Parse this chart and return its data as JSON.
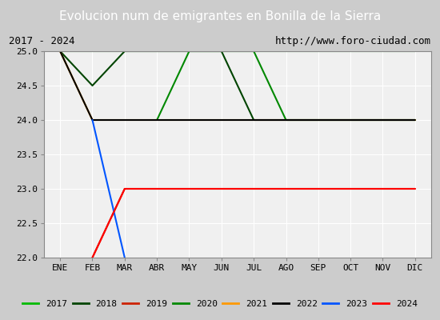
{
  "title": "Evolucion num de emigrantes en Bonilla de la Sierra",
  "subtitle_left": "2017 - 2024",
  "subtitle_right": "http://www.foro-ciudad.com",
  "xlabel_months": [
    "ENE",
    "FEB",
    "MAR",
    "ABR",
    "MAY",
    "JUN",
    "JUL",
    "AGO",
    "SEP",
    "OCT",
    "NOV",
    "DIC"
  ],
  "ylim": [
    22.0,
    25.0
  ],
  "yticks": [
    22.0,
    22.5,
    23.0,
    23.5,
    24.0,
    24.5,
    25.0
  ],
  "series": [
    {
      "label": "2017",
      "color": "#00bb00",
      "data": [
        [
          1,
          25
        ],
        [
          12,
          25
        ]
      ]
    },
    {
      "label": "2018",
      "color": "#004400",
      "data": [
        [
          1,
          25
        ],
        [
          2,
          24.5
        ],
        [
          3,
          25
        ],
        [
          5,
          25
        ],
        [
          6,
          25
        ],
        [
          7,
          24
        ],
        [
          12,
          24
        ]
      ]
    },
    {
      "label": "2019",
      "color": "#cc2200",
      "data": [
        [
          2,
          22
        ],
        [
          3,
          23
        ],
        [
          12,
          23
        ]
      ]
    },
    {
      "label": "2020",
      "color": "#008800",
      "data": [
        [
          4,
          24
        ],
        [
          5,
          25
        ],
        [
          6,
          25
        ],
        [
          7,
          25
        ],
        [
          8,
          24
        ],
        [
          12,
          24
        ]
      ]
    },
    {
      "label": "2021",
      "color": "#ff9900",
      "data": [
        [
          1,
          25
        ],
        [
          2,
          24
        ],
        [
          12,
          24
        ]
      ]
    },
    {
      "label": "2022",
      "color": "#000000",
      "data": [
        [
          1,
          25
        ],
        [
          2,
          24
        ],
        [
          12,
          24
        ]
      ]
    },
    {
      "label": "2023",
      "color": "#0055ff",
      "data": [
        [
          2,
          24
        ],
        [
          3,
          22
        ]
      ]
    },
    {
      "label": "2024",
      "color": "#ff0000",
      "data": [
        [
          2,
          22
        ],
        [
          3,
          23
        ],
        [
          12,
          23
        ]
      ]
    }
  ],
  "title_bg": "#4477cc",
  "title_color": "#ffffff",
  "title_fontsize": 11,
  "plot_bg": "#cccccc",
  "inner_bg": "#f0f0f0",
  "legend_bg": "#ffffff",
  "grid_color": "#ffffff",
  "subtitle_fontsize": 9,
  "legend_fontsize": 8
}
